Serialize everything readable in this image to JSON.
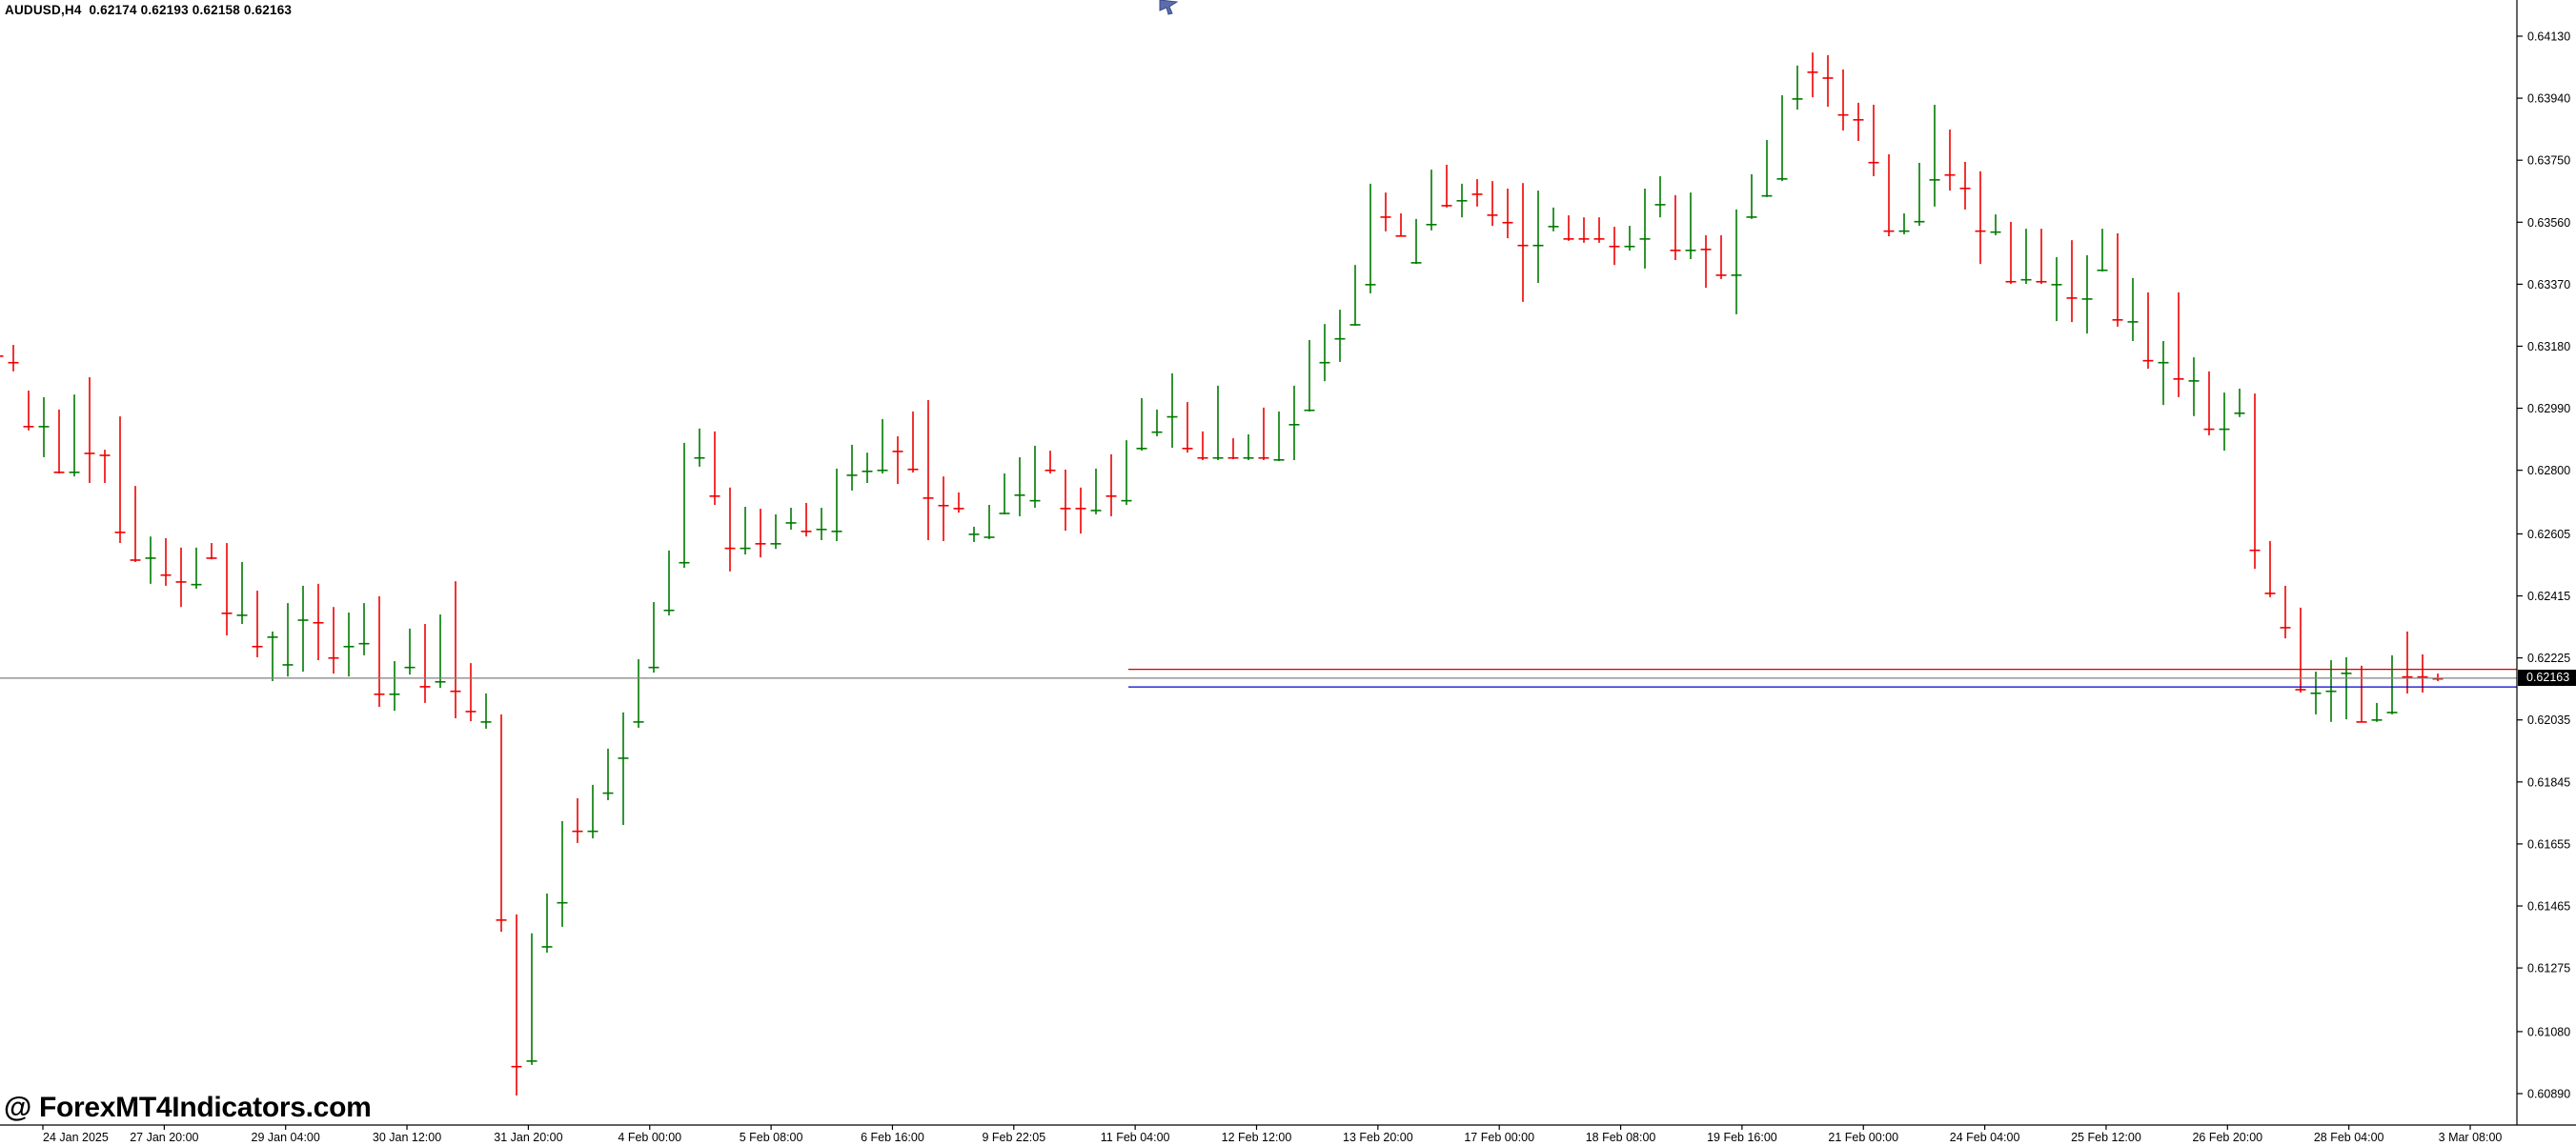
{
  "window": {
    "symbol_line": "AUDUSD,H4  0.62174 0.62193 0.62158 0.62163",
    "watermark": "@ ForexMT4Indicators.com"
  },
  "quote": {
    "open": "0.62174",
    "high": "0.62193",
    "low": "0.62158",
    "bid": "0.62163"
  },
  "colors": {
    "background": "#ffffff",
    "bull": "#007a00",
    "bear": "#ee0000",
    "axis_line": "#000000",
    "label_text": "#000000",
    "bid_line": "#808080",
    "red_level_line": "#d40000",
    "blue_level_line": "#0000cc",
    "price_tag_bg": "#000000",
    "price_tag_text": "#ffffff",
    "cursor": "#5b6dae"
  },
  "price_axis": {
    "labels": [
      "0.64130",
      "0.63940",
      "0.63750",
      "0.63560",
      "0.63370",
      "0.63180",
      "0.62990",
      "0.62800",
      "0.62605",
      "0.62415",
      "0.62225",
      "0.62035",
      "0.61845",
      "0.61655",
      "0.61465",
      "0.61275",
      "0.61080",
      "0.60890"
    ],
    "current": "0.62163"
  },
  "time_axis": {
    "labels": [
      "24 Jan 2025",
      "27 Jan 20:00",
      "29 Jan 04:00",
      "30 Jan 12:00",
      "31 Jan 20:00",
      "4 Feb 00:00",
      "5 Feb 08:00",
      "6 Feb 16:00",
      "9 Feb 22:05",
      "11 Feb 04:00",
      "12 Feb 12:00",
      "13 Feb 20:00",
      "17 Feb 00:00",
      "18 Feb 08:00",
      "19 Feb 16:00",
      "21 Feb 00:00",
      "24 Feb 04:00",
      "25 Feb 12:00",
      "26 Feb 20:00",
      "28 Feb 04:00",
      "3 Mar 08:00"
    ]
  },
  "overlay_lines": [
    {
      "name": "red-level-line",
      "price": 0.6219,
      "color_key": "red_level_line",
      "x_start": 1184
    },
    {
      "name": "bid-price-line",
      "price": 0.62163,
      "color_key": "bid_line",
      "x_start": 0
    },
    {
      "name": "blue-level-line",
      "price": 0.62136,
      "color_key": "blue_level_line",
      "x_start": 1184
    }
  ],
  "chart_data": {
    "type": "candlestick",
    "symbol": "AUDUSD",
    "timeframe": "H4",
    "title": "AUDUSD H4 candlestick chart",
    "ylim": [
      0.6089,
      0.6413
    ],
    "grid": false,
    "bars_per_time_label": 8,
    "axis_map": {
      "p_top": 0.6413,
      "y_top": 38,
      "p_bot": 0.6089,
      "y_bot": 1148
    },
    "layout": {
      "first_bar_x": -2,
      "bar_pitch": 16,
      "body_width": 11,
      "plot_right": 2641,
      "plot_bottom": 1181,
      "first_tick_x": 45,
      "tick_pitch": 127.35
    },
    "candles_format": [
      "open",
      "high",
      "low",
      "close"
    ],
    "candles": [
      [
        0.6324,
        0.63248,
        0.63143,
        0.63152
      ],
      [
        0.63155,
        0.63184,
        0.63103,
        0.63132
      ],
      [
        0.63024,
        0.63044,
        0.62922,
        0.62936
      ],
      [
        0.62936,
        0.63024,
        0.6284,
        0.62971
      ],
      [
        0.62971,
        0.62986,
        0.6279,
        0.62796
      ],
      [
        0.62796,
        0.63032,
        0.62781,
        0.63006
      ],
      [
        0.63006,
        0.63085,
        0.62761,
        0.62854
      ],
      [
        0.62857,
        0.62863,
        0.62761,
        0.62848
      ],
      [
        0.62854,
        0.62965,
        0.62577,
        0.62612
      ],
      [
        0.62612,
        0.62752,
        0.62519,
        0.62527
      ],
      [
        0.62533,
        0.62597,
        0.62452,
        0.62539
      ],
      [
        0.62539,
        0.62592,
        0.62446,
        0.62481
      ],
      [
        0.6249,
        0.62563,
        0.62381,
        0.6246
      ],
      [
        0.62452,
        0.62563,
        0.62437,
        0.62557
      ],
      [
        0.62568,
        0.62577,
        0.62527,
        0.62533
      ],
      [
        0.62533,
        0.62577,
        0.62294,
        0.62364
      ],
      [
        0.62358,
        0.62519,
        0.62329,
        0.62387
      ],
      [
        0.62396,
        0.62431,
        0.62227,
        0.62262
      ],
      [
        0.62291,
        0.62306,
        0.62154,
        0.62297
      ],
      [
        0.62206,
        0.62393,
        0.62168,
        0.62271
      ],
      [
        0.62343,
        0.62446,
        0.62183,
        0.62416
      ],
      [
        0.62416,
        0.62452,
        0.62218,
        0.62335
      ],
      [
        0.62343,
        0.62381,
        0.62177,
        0.62227
      ],
      [
        0.62262,
        0.62364,
        0.62168,
        0.623
      ],
      [
        0.62271,
        0.62393,
        0.62233,
        0.62379
      ],
      [
        0.62396,
        0.62414,
        0.62075,
        0.62116
      ],
      [
        0.62116,
        0.62215,
        0.62063,
        0.62198
      ],
      [
        0.62198,
        0.62315,
        0.62174,
        0.62297
      ],
      [
        0.62297,
        0.62329,
        0.62087,
        0.62139
      ],
      [
        0.62154,
        0.62358,
        0.62133,
        0.62329
      ],
      [
        0.62329,
        0.6246,
        0.6204,
        0.62125
      ],
      [
        0.62104,
        0.62209,
        0.62031,
        0.62063
      ],
      [
        0.62031,
        0.62116,
        0.62008,
        0.62096
      ],
      [
        0.62034,
        0.62052,
        0.61386,
        0.61424
      ],
      [
        0.61427,
        0.61439,
        0.60884,
        0.60975
      ],
      [
        0.60992,
        0.61381,
        0.60978,
        0.61357
      ],
      [
        0.61342,
        0.61503,
        0.61322,
        0.61488
      ],
      [
        0.61477,
        0.61725,
        0.61401,
        0.61701
      ],
      [
        0.61774,
        0.61795,
        0.61658,
        0.61696
      ],
      [
        0.61696,
        0.61836,
        0.61672,
        0.61818
      ],
      [
        0.61813,
        0.61947,
        0.61789,
        0.61929
      ],
      [
        0.6192,
        0.62058,
        0.61713,
        0.62031
      ],
      [
        0.62031,
        0.62221,
        0.62011,
        0.62198
      ],
      [
        0.62198,
        0.62396,
        0.6218,
        0.62373
      ],
      [
        0.62373,
        0.62554,
        0.62355,
        0.62519
      ],
      [
        0.62519,
        0.62884,
        0.62501,
        0.6284
      ],
      [
        0.6284,
        0.62928,
        0.62811,
        0.62898
      ],
      [
        0.62898,
        0.62919,
        0.62694,
        0.62723
      ],
      [
        0.62723,
        0.62747,
        0.6249,
        0.62563
      ],
      [
        0.62563,
        0.62688,
        0.62542,
        0.62665
      ],
      [
        0.62665,
        0.62682,
        0.62533,
        0.62577
      ],
      [
        0.62577,
        0.62665,
        0.62559,
        0.62641
      ],
      [
        0.62641,
        0.62685,
        0.62618,
        0.62659
      ],
      [
        0.62644,
        0.627,
        0.62597,
        0.62615
      ],
      [
        0.62621,
        0.62685,
        0.62586,
        0.62656
      ],
      [
        0.62615,
        0.62805,
        0.62583,
        0.62796
      ],
      [
        0.62787,
        0.62878,
        0.62738,
        0.62802
      ],
      [
        0.62799,
        0.62854,
        0.62761,
        0.62814
      ],
      [
        0.62802,
        0.62957,
        0.6279,
        0.62878
      ],
      [
        0.62875,
        0.62904,
        0.62758,
        0.6286
      ],
      [
        0.62863,
        0.6298,
        0.62793,
        0.62805
      ],
      [
        0.62802,
        0.63015,
        0.62586,
        0.62717
      ],
      [
        0.62729,
        0.62781,
        0.62583,
        0.62694
      ],
      [
        0.62706,
        0.62732,
        0.6267,
        0.62685
      ],
      [
        0.62606,
        0.62627,
        0.6258,
        0.62612
      ],
      [
        0.62597,
        0.62694,
        0.62589,
        0.62685
      ],
      [
        0.6267,
        0.6279,
        0.62665,
        0.62717
      ],
      [
        0.62726,
        0.6284,
        0.62659,
        0.62735
      ],
      [
        0.62709,
        0.62875,
        0.62685,
        0.62817
      ],
      [
        0.62846,
        0.6286,
        0.6279,
        0.62802
      ],
      [
        0.62796,
        0.62802,
        0.62615,
        0.62685
      ],
      [
        0.62697,
        0.62747,
        0.62606,
        0.62685
      ],
      [
        0.62679,
        0.62805,
        0.62665,
        0.6279
      ],
      [
        0.62793,
        0.62849,
        0.62659,
        0.62723
      ],
      [
        0.62709,
        0.62892,
        0.62694,
        0.62878
      ],
      [
        0.62869,
        0.63021,
        0.6286,
        0.62933
      ],
      [
        0.62919,
        0.62986,
        0.62904,
        0.62963
      ],
      [
        0.62966,
        0.63097,
        0.62869,
        0.62995
      ],
      [
        0.63,
        0.63009,
        0.62854,
        0.62869
      ],
      [
        0.62884,
        0.62919,
        0.62831,
        0.6284
      ],
      [
        0.6284,
        0.63059,
        0.62831,
        0.62863
      ],
      [
        0.6286,
        0.62898,
        0.62834,
        0.6284
      ],
      [
        0.6284,
        0.6291,
        0.62831,
        0.62898
      ],
      [
        0.62892,
        0.62992,
        0.62831,
        0.6284
      ],
      [
        0.62834,
        0.6298,
        0.62828,
        0.62971
      ],
      [
        0.62942,
        0.63059,
        0.62831,
        0.62992
      ],
      [
        0.62986,
        0.63199,
        0.6298,
        0.63138
      ],
      [
        0.63132,
        0.63248,
        0.63073,
        0.63196
      ],
      [
        0.63205,
        0.63292,
        0.63132,
        0.63254
      ],
      [
        0.63248,
        0.63429,
        0.63243,
        0.63359
      ],
      [
        0.63371,
        0.63678,
        0.63342,
        0.63619
      ],
      [
        0.63622,
        0.63651,
        0.63532,
        0.63578
      ],
      [
        0.63575,
        0.63587,
        0.63517,
        0.6352
      ],
      [
        0.63438,
        0.6357,
        0.63432,
        0.63561
      ],
      [
        0.63555,
        0.63721,
        0.63535,
        0.63648
      ],
      [
        0.63643,
        0.63736,
        0.63605,
        0.63613
      ],
      [
        0.63628,
        0.63678,
        0.63575,
        0.63663
      ],
      [
        0.6366,
        0.63692,
        0.63608,
        0.63648
      ],
      [
        0.63651,
        0.63686,
        0.63549,
        0.63584
      ],
      [
        0.63619,
        0.63663,
        0.63511,
        0.63561
      ],
      [
        0.63549,
        0.6368,
        0.63316,
        0.63491
      ],
      [
        0.63491,
        0.63657,
        0.63374,
        0.63546
      ],
      [
        0.63549,
        0.63605,
        0.63532,
        0.63575
      ],
      [
        0.6357,
        0.63581,
        0.63503,
        0.63511
      ],
      [
        0.63561,
        0.63575,
        0.63497,
        0.63511
      ],
      [
        0.63561,
        0.63575,
        0.63497,
        0.63511
      ],
      [
        0.6352,
        0.63546,
        0.63429,
        0.63488
      ],
      [
        0.63488,
        0.63549,
        0.63473,
        0.6352
      ],
      [
        0.63511,
        0.63663,
        0.63418,
        0.63622
      ],
      [
        0.63616,
        0.63701,
        0.63575,
        0.63631
      ],
      [
        0.63634,
        0.63643,
        0.63444,
        0.63476
      ],
      [
        0.63476,
        0.63651,
        0.63447,
        0.63497
      ],
      [
        0.63494,
        0.6352,
        0.63359,
        0.63479
      ],
      [
        0.63476,
        0.6352,
        0.63386,
        0.634
      ],
      [
        0.634,
        0.63599,
        0.63278,
        0.6359
      ],
      [
        0.63578,
        0.63707,
        0.6357,
        0.63648
      ],
      [
        0.63643,
        0.63812,
        0.63637,
        0.63701
      ],
      [
        0.63695,
        0.63949,
        0.63686,
        0.63943
      ],
      [
        0.6394,
        0.6404,
        0.63905,
        0.64028
      ],
      [
        0.64022,
        0.6408,
        0.63943,
        0.64022
      ],
      [
        0.64019,
        0.64072,
        0.63914,
        0.64004
      ],
      [
        0.64013,
        0.64028,
        0.63841,
        0.63891
      ],
      [
        0.63897,
        0.63926,
        0.63809,
        0.63876
      ],
      [
        0.6387,
        0.6392,
        0.63701,
        0.63745
      ],
      [
        0.63739,
        0.63768,
        0.63517,
        0.63535
      ],
      [
        0.63535,
        0.63587,
        0.63523,
        0.63575
      ],
      [
        0.63564,
        0.63742,
        0.63549,
        0.63686
      ],
      [
        0.63692,
        0.6392,
        0.63608,
        0.63832
      ],
      [
        0.63832,
        0.63844,
        0.63657,
        0.63707
      ],
      [
        0.6371,
        0.63745,
        0.63599,
        0.63666
      ],
      [
        0.63666,
        0.63716,
        0.63432,
        0.63535
      ],
      [
        0.63532,
        0.63584,
        0.6352,
        0.6357
      ],
      [
        0.63549,
        0.63561,
        0.63371,
        0.6338
      ],
      [
        0.63386,
        0.6354,
        0.63371,
        0.63532
      ],
      [
        0.63532,
        0.6354,
        0.63371,
        0.6338
      ],
      [
        0.63371,
        0.63453,
        0.63257,
        0.63447
      ],
      [
        0.63444,
        0.63505,
        0.63254,
        0.6333
      ],
      [
        0.63327,
        0.63459,
        0.63219,
        0.63418
      ],
      [
        0.63415,
        0.6354,
        0.63409,
        0.63511
      ],
      [
        0.63511,
        0.63526,
        0.6324,
        0.63263
      ],
      [
        0.63257,
        0.63389,
        0.63196,
        0.63269
      ],
      [
        0.63266,
        0.63345,
        0.63111,
        0.63138
      ],
      [
        0.63132,
        0.63196,
        0.63,
        0.63158
      ],
      [
        0.63155,
        0.63345,
        0.63024,
        0.63082
      ],
      [
        0.63076,
        0.63146,
        0.62966,
        0.63088
      ],
      [
        0.63091,
        0.63103,
        0.62907,
        0.62928
      ],
      [
        0.62928,
        0.63038,
        0.6286,
        0.62971
      ],
      [
        0.62977,
        0.6305,
        0.62963,
        0.62989
      ],
      [
        0.62992,
        0.63035,
        0.62498,
        0.62557
      ],
      [
        0.62557,
        0.62583,
        0.62411,
        0.62425
      ],
      [
        0.62431,
        0.62446,
        0.62285,
        0.6232
      ],
      [
        0.6232,
        0.62379,
        0.62119,
        0.6213
      ],
      [
        0.62119,
        0.62183,
        0.62052,
        0.6213
      ],
      [
        0.62125,
        0.62218,
        0.62029,
        0.62189
      ],
      [
        0.6218,
        0.62227,
        0.62037,
        0.62189
      ],
      [
        0.62189,
        0.62201,
        0.62029,
        0.62031
      ],
      [
        0.62037,
        0.62087,
        0.62029,
        0.62075
      ],
      [
        0.6206,
        0.62233,
        0.62052,
        0.62183
      ],
      [
        0.62195,
        0.62306,
        0.62116,
        0.62169
      ],
      [
        0.6218,
        0.62236,
        0.62119,
        0.62169
      ],
      [
        0.62172,
        0.62177,
        0.62154,
        0.62163
      ]
    ]
  }
}
